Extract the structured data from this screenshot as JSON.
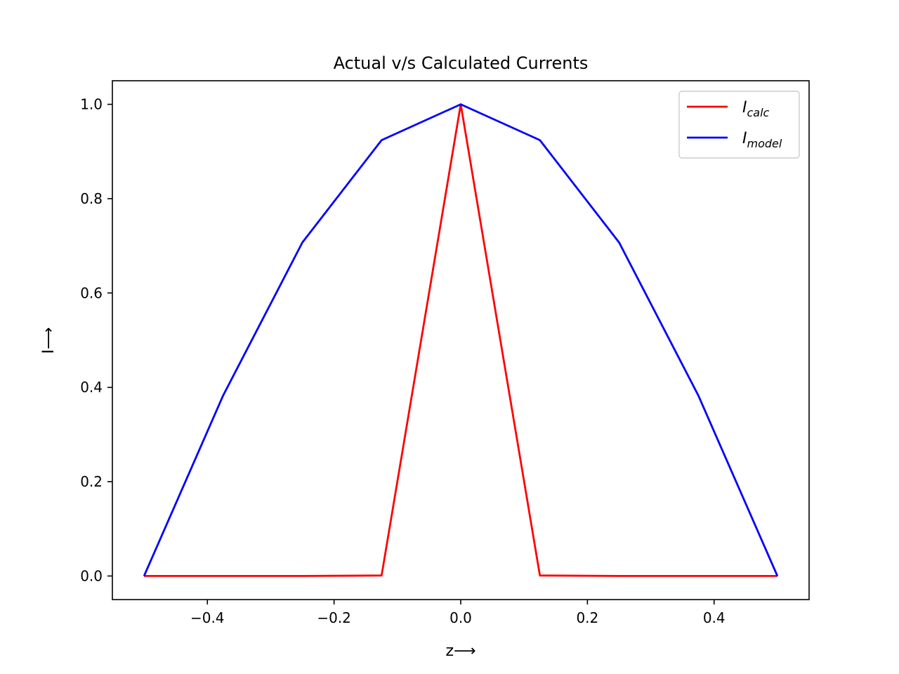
{
  "chart_data": {
    "type": "line",
    "title": "Actual v/s Calculated Currents",
    "xlabel": "z⟶",
    "ylabel": "I⟶",
    "xlim": [
      -0.55,
      0.55
    ],
    "ylim": [
      -0.05,
      1.05
    ],
    "xticks": [
      -0.4,
      -0.2,
      0.0,
      0.2,
      0.4
    ],
    "xtick_labels": [
      "−0.4",
      "−0.2",
      "0.0",
      "0.2",
      "0.4"
    ],
    "yticks": [
      0.0,
      0.2,
      0.4,
      0.6,
      0.8,
      1.0
    ],
    "ytick_labels": [
      "0.0",
      "0.2",
      "0.4",
      "0.6",
      "0.8",
      "1.0"
    ],
    "grid": false,
    "legend_position": "top-right",
    "series": [
      {
        "name": "I_calc",
        "legend_main": "I",
        "legend_sub": "calc",
        "color": "#ff0000",
        "x": [
          -0.5,
          -0.375,
          -0.25,
          -0.125,
          0.0,
          0.125,
          0.25,
          0.375,
          0.5
        ],
        "y": [
          0.0,
          0.0,
          0.0,
          0.001,
          1.0,
          0.001,
          0.0,
          0.0,
          0.0
        ]
      },
      {
        "name": "I_model",
        "legend_main": "I",
        "legend_sub": "model",
        "color": "#0000ff",
        "x": [
          -0.5,
          -0.375,
          -0.25,
          -0.125,
          0.0,
          0.125,
          0.25,
          0.375,
          0.5
        ],
        "y": [
          0.0,
          0.383,
          0.707,
          0.924,
          1.0,
          0.924,
          0.707,
          0.383,
          0.0
        ]
      }
    ]
  }
}
